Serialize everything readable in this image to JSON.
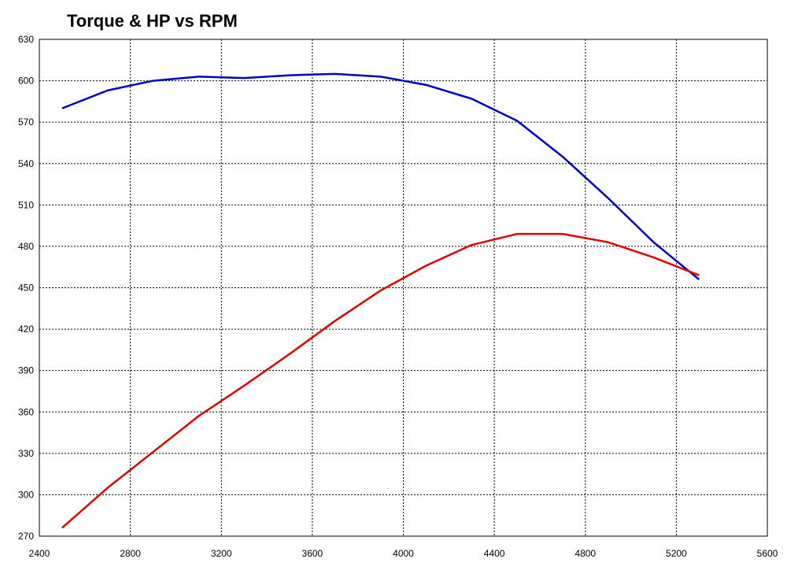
{
  "chart_data": {
    "type": "line",
    "title": "Torque & HP vs RPM",
    "xlabel": "",
    "ylabel": "",
    "xlim": [
      2400,
      5600
    ],
    "ylim": [
      270,
      630
    ],
    "xticks": [
      2400,
      2800,
      3200,
      3600,
      4000,
      4400,
      4800,
      5200,
      5600
    ],
    "yticks": [
      270,
      300,
      330,
      360,
      390,
      420,
      450,
      480,
      510,
      540,
      570,
      600,
      630
    ],
    "grid": true,
    "series": [
      {
        "color": "#0000c0",
        "points": [
          [
            2500,
            580
          ],
          [
            2700,
            593
          ],
          [
            2900,
            600
          ],
          [
            3100,
            603
          ],
          [
            3300,
            602
          ],
          [
            3500,
            604
          ],
          [
            3700,
            605
          ],
          [
            3900,
            603
          ],
          [
            4100,
            597
          ],
          [
            4300,
            587
          ],
          [
            4500,
            571
          ],
          [
            4700,
            545
          ],
          [
            4900,
            515
          ],
          [
            5100,
            483
          ],
          [
            5300,
            456
          ]
        ]
      },
      {
        "color": "#e00000",
        "points": [
          [
            2500,
            276
          ],
          [
            2700,
            305
          ],
          [
            2900,
            331
          ],
          [
            3100,
            357
          ],
          [
            3300,
            379
          ],
          [
            3500,
            402
          ],
          [
            3700,
            426
          ],
          [
            3900,
            448
          ],
          [
            4100,
            466
          ],
          [
            4300,
            481
          ],
          [
            4500,
            489
          ],
          [
            4700,
            489
          ],
          [
            4900,
            483
          ],
          [
            5100,
            472
          ],
          [
            5300,
            459
          ]
        ]
      }
    ]
  }
}
